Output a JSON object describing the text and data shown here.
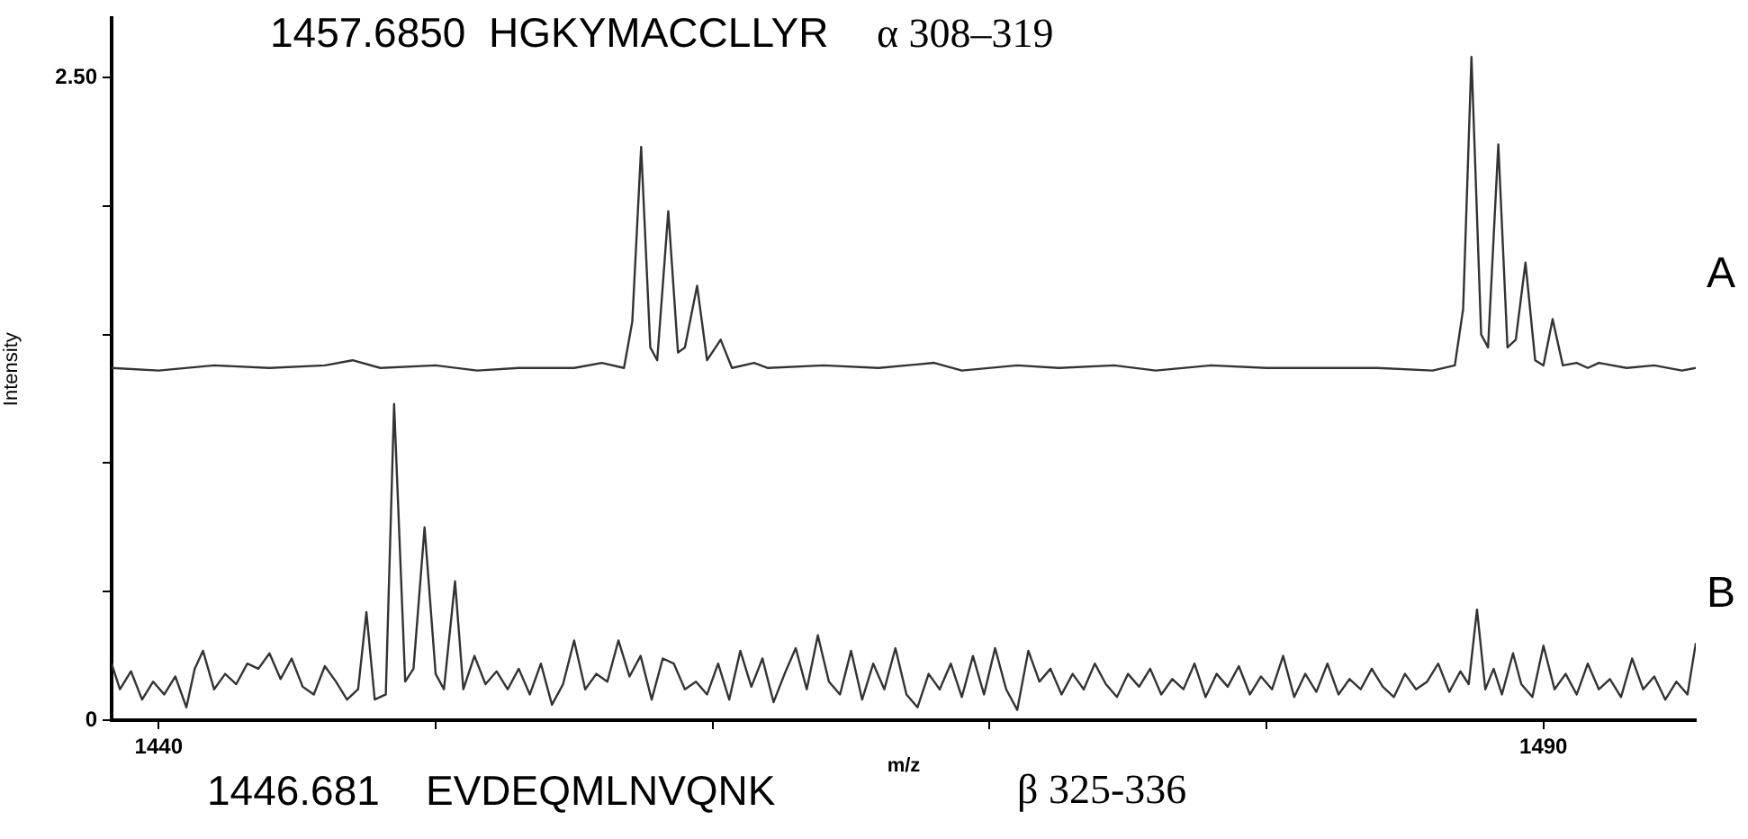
{
  "chart_data": {
    "type": "line",
    "xlabel": "m/z",
    "ylabel": "Intensity",
    "annotations": [
      "1457.6850  HGKYMACCLLYR",
      "α 308–319",
      "1446.681    EVDEQMLNVQNK",
      "β 325-336"
    ],
    "xlim": [
      1438.3,
      1495.5
    ],
    "ylim": [
      0,
      2.73
    ],
    "xticks": [
      1440,
      {
        "value": 1450,
        "label": null
      },
      {
        "value": 1460,
        "label": null
      },
      {
        "value": 1470,
        "label": null
      },
      {
        "value": 1480,
        "label": null
      },
      1490
    ],
    "yticks": [
      0,
      {
        "value": 0.5,
        "label": null
      },
      {
        "value": 1,
        "label": null
      },
      {
        "value": 1.5,
        "label": null
      },
      {
        "value": 2,
        "label": null
      },
      {
        "value": 2.5,
        "label": "2.50"
      }
    ],
    "marker": "none",
    "line_style": "solid",
    "series": [
      {
        "name": "A",
        "color": "#333333",
        "x": [
          1438.3,
          1440,
          1442,
          1444,
          1446,
          1447,
          1448,
          1450,
          1451.5,
          1453,
          1455,
          1456,
          1456.8,
          1457.1,
          1457.42,
          1457.75,
          1458.0,
          1458.4,
          1458.75,
          1459.0,
          1459.44,
          1459.8,
          1460.29,
          1460.7,
          1461.5,
          1462,
          1464,
          1466,
          1468,
          1469,
          1471,
          1472.5,
          1474.5,
          1476,
          1478,
          1480,
          1482,
          1484,
          1486,
          1486.8,
          1487.1,
          1487.4,
          1487.75,
          1488.0,
          1488.37,
          1488.7,
          1489.0,
          1489.35,
          1489.7,
          1490.0,
          1490.33,
          1490.7,
          1491.2,
          1491.6,
          1492,
          1493,
          1494,
          1495,
          1495.5
        ],
        "values": [
          1.37,
          1.36,
          1.38,
          1.37,
          1.38,
          1.4,
          1.37,
          1.38,
          1.36,
          1.37,
          1.37,
          1.39,
          1.37,
          1.55,
          2.23,
          1.45,
          1.4,
          1.98,
          1.43,
          1.45,
          1.69,
          1.4,
          1.48,
          1.37,
          1.39,
          1.37,
          1.38,
          1.37,
          1.39,
          1.36,
          1.38,
          1.37,
          1.38,
          1.36,
          1.38,
          1.37,
          1.37,
          1.37,
          1.36,
          1.38,
          1.6,
          2.58,
          1.5,
          1.45,
          2.24,
          1.45,
          1.48,
          1.78,
          1.4,
          1.38,
          1.56,
          1.38,
          1.39,
          1.37,
          1.39,
          1.37,
          1.38,
          1.36,
          1.37
        ]
      },
      {
        "name": "B",
        "color": "#333333",
        "x": [
          1438.3,
          1438.6,
          1439.0,
          1439.4,
          1439.8,
          1440.2,
          1440.6,
          1441.0,
          1441.3,
          1441.6,
          1442.0,
          1442.4,
          1442.8,
          1443.2,
          1443.6,
          1444.0,
          1444.4,
          1444.8,
          1445.2,
          1445.6,
          1446.0,
          1446.4,
          1446.8,
          1447.2,
          1447.5,
          1447.8,
          1448.2,
          1448.5,
          1448.9,
          1449.2,
          1449.6,
          1450.0,
          1450.3,
          1450.7,
          1451.0,
          1451.4,
          1451.8,
          1452.2,
          1452.6,
          1453.0,
          1453.4,
          1453.8,
          1454.2,
          1454.6,
          1455.0,
          1455.4,
          1455.8,
          1456.2,
          1456.6,
          1457.0,
          1457.4,
          1457.8,
          1458.2,
          1458.6,
          1459.0,
          1459.4,
          1459.8,
          1460.2,
          1460.6,
          1461.0,
          1461.4,
          1461.8,
          1462.2,
          1462.6,
          1463.0,
          1463.4,
          1463.8,
          1464.2,
          1464.6,
          1465.0,
          1465.4,
          1465.8,
          1466.2,
          1466.6,
          1467.0,
          1467.4,
          1467.8,
          1468.2,
          1468.6,
          1469.0,
          1469.4,
          1469.8,
          1470.2,
          1470.6,
          1471.0,
          1471.4,
          1471.8,
          1472.2,
          1472.6,
          1473.0,
          1473.4,
          1473.8,
          1474.2,
          1474.6,
          1475.0,
          1475.4,
          1475.8,
          1476.2,
          1476.6,
          1477.0,
          1477.4,
          1477.8,
          1478.2,
          1478.6,
          1479.0,
          1479.4,
          1479.8,
          1480.2,
          1480.6,
          1481.0,
          1481.4,
          1481.8,
          1482.2,
          1482.6,
          1483.0,
          1483.4,
          1483.8,
          1484.2,
          1484.6,
          1485.0,
          1485.4,
          1485.8,
          1486.2,
          1486.6,
          1487.0,
          1487.3,
          1487.6,
          1487.9,
          1488.2,
          1488.5,
          1488.9,
          1489.2,
          1489.6,
          1490.0,
          1490.4,
          1490.8,
          1491.2,
          1491.6,
          1492.0,
          1492.4,
          1492.8,
          1493.2,
          1493.6,
          1494.0,
          1494.4,
          1494.8,
          1495.2,
          1495.5
        ],
        "values": [
          0.22,
          0.12,
          0.19,
          0.08,
          0.15,
          0.1,
          0.17,
          0.05,
          0.2,
          0.27,
          0.12,
          0.18,
          0.14,
          0.22,
          0.2,
          0.26,
          0.16,
          0.24,
          0.13,
          0.1,
          0.21,
          0.15,
          0.08,
          0.12,
          0.42,
          0.08,
          0.1,
          1.23,
          0.15,
          0.2,
          0.75,
          0.18,
          0.12,
          0.54,
          0.12,
          0.25,
          0.14,
          0.19,
          0.12,
          0.2,
          0.1,
          0.22,
          0.06,
          0.14,
          0.31,
          0.12,
          0.18,
          0.15,
          0.31,
          0.17,
          0.25,
          0.08,
          0.24,
          0.22,
          0.12,
          0.15,
          0.1,
          0.22,
          0.08,
          0.27,
          0.13,
          0.24,
          0.07,
          0.18,
          0.28,
          0.12,
          0.33,
          0.15,
          0.1,
          0.27,
          0.08,
          0.22,
          0.12,
          0.28,
          0.1,
          0.05,
          0.18,
          0.12,
          0.22,
          0.09,
          0.25,
          0.1,
          0.28,
          0.12,
          0.04,
          0.27,
          0.15,
          0.2,
          0.1,
          0.18,
          0.12,
          0.22,
          0.14,
          0.09,
          0.18,
          0.13,
          0.2,
          0.1,
          0.16,
          0.12,
          0.22,
          0.09,
          0.18,
          0.13,
          0.21,
          0.1,
          0.17,
          0.12,
          0.25,
          0.09,
          0.18,
          0.11,
          0.22,
          0.1,
          0.16,
          0.12,
          0.2,
          0.13,
          0.09,
          0.18,
          0.12,
          0.15,
          0.22,
          0.11,
          0.19,
          0.14,
          0.43,
          0.12,
          0.2,
          0.1,
          0.26,
          0.14,
          0.09,
          0.29,
          0.12,
          0.18,
          0.1,
          0.22,
          0.12,
          0.16,
          0.09,
          0.24,
          0.12,
          0.17,
          0.08,
          0.15,
          0.1,
          0.3
        ]
      }
    ]
  }
}
